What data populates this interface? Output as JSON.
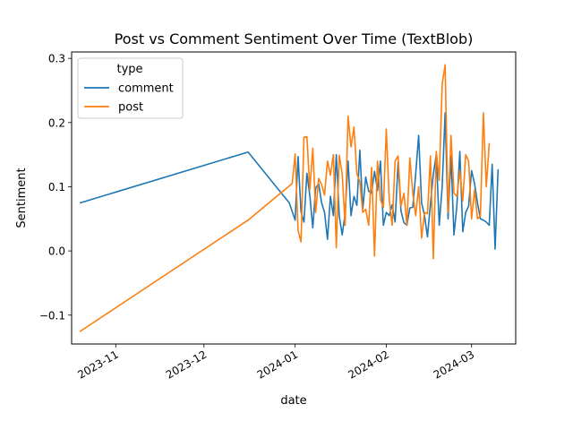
{
  "chart_data": {
    "type": "line",
    "title": "Post vs Comment Sentiment Over Time (TextBlob)",
    "xlabel": "date",
    "ylabel": "Sentiment",
    "xlim": [
      "2023-10-17",
      "2024-03-16"
    ],
    "ylim": [
      -0.145,
      0.31
    ],
    "grid": false,
    "legend": {
      "title": "type",
      "placement": "top-left"
    },
    "x_ticks": [
      {
        "date": "2023-11-01",
        "label": "2023-11"
      },
      {
        "date": "2023-12-01",
        "label": "2023-12"
      },
      {
        "date": "2024-01-01",
        "label": "2024-01"
      },
      {
        "date": "2024-02-01",
        "label": "2024-02"
      },
      {
        "date": "2024-03-01",
        "label": "2024-03"
      }
    ],
    "y_ticks": [
      {
        "value": -0.1,
        "label": "−0.1"
      },
      {
        "value": 0.0,
        "label": "0.0"
      },
      {
        "value": 0.1,
        "label": "0.1"
      },
      {
        "value": 0.2,
        "label": "0.2"
      },
      {
        "value": 0.3,
        "label": "0.3"
      }
    ],
    "series": [
      {
        "name": "comment",
        "color": "#1f77b4",
        "points": [
          [
            "2023-10-20",
            0.075
          ],
          [
            "2023-12-16",
            0.154
          ],
          [
            "2023-12-30",
            0.075
          ],
          [
            "2024-01-01",
            0.048
          ],
          [
            "2024-01-02",
            0.147
          ],
          [
            "2024-01-03",
            0.061
          ],
          [
            "2024-01-04",
            0.045
          ],
          [
            "2024-01-05",
            0.121
          ],
          [
            "2024-01-06",
            0.086
          ],
          [
            "2024-01-07",
            0.036
          ],
          [
            "2024-01-08",
            0.098
          ],
          [
            "2024-01-09",
            0.105
          ],
          [
            "2024-01-10",
            0.075
          ],
          [
            "2024-01-11",
            0.06
          ],
          [
            "2024-01-12",
            0.018
          ],
          [
            "2024-01-13",
            0.085
          ],
          [
            "2024-01-14",
            0.055
          ],
          [
            "2024-01-15",
            0.15
          ],
          [
            "2024-01-16",
            0.055
          ],
          [
            "2024-01-17",
            0.025
          ],
          [
            "2024-01-18",
            0.058
          ],
          [
            "2024-01-19",
            0.14
          ],
          [
            "2024-01-20",
            0.055
          ],
          [
            "2024-01-21",
            0.085
          ],
          [
            "2024-01-22",
            0.071
          ],
          [
            "2024-01-23",
            0.157
          ],
          [
            "2024-01-24",
            0.065
          ],
          [
            "2024-01-25",
            0.115
          ],
          [
            "2024-01-26",
            0.093
          ],
          [
            "2024-01-27",
            0.09
          ],
          [
            "2024-01-28",
            0.124
          ],
          [
            "2024-01-29",
            0.094
          ],
          [
            "2024-01-30",
            0.14
          ],
          [
            "2024-01-31",
            0.04
          ],
          [
            "2024-02-01",
            0.06
          ],
          [
            "2024-02-02",
            0.055
          ],
          [
            "2024-02-03",
            0.072
          ],
          [
            "2024-02-04",
            0.045
          ],
          [
            "2024-02-05",
            0.138
          ],
          [
            "2024-02-06",
            0.062
          ],
          [
            "2024-02-07",
            0.044
          ],
          [
            "2024-02-08",
            0.04
          ],
          [
            "2024-02-09",
            0.067
          ],
          [
            "2024-02-10",
            0.068
          ],
          [
            "2024-02-11",
            0.12
          ],
          [
            "2024-02-12",
            0.18
          ],
          [
            "2024-02-13",
            0.075
          ],
          [
            "2024-02-14",
            0.055
          ],
          [
            "2024-02-15",
            0.022
          ],
          [
            "2024-02-16",
            0.073
          ],
          [
            "2024-02-17",
            0.12
          ],
          [
            "2024-02-18",
            0.15
          ],
          [
            "2024-02-19",
            0.04
          ],
          [
            "2024-02-20",
            0.1
          ],
          [
            "2024-02-21",
            0.215
          ],
          [
            "2024-02-22",
            0.05
          ],
          [
            "2024-02-23",
            0.148
          ],
          [
            "2024-02-24",
            0.025
          ],
          [
            "2024-02-25",
            0.07
          ],
          [
            "2024-02-26",
            0.155
          ],
          [
            "2024-02-27",
            0.03
          ],
          [
            "2024-02-28",
            0.06
          ],
          [
            "2024-02-29",
            0.07
          ],
          [
            "2024-03-01",
            0.125
          ],
          [
            "2024-03-02",
            0.105
          ],
          [
            "2024-03-03",
            0.075
          ],
          [
            "2024-03-04",
            0.05
          ],
          [
            "2024-03-05",
            0.048
          ],
          [
            "2024-03-06",
            0.045
          ],
          [
            "2024-03-07",
            0.04
          ],
          [
            "2024-03-08",
            0.135
          ],
          [
            "2024-03-09",
            0.003
          ],
          [
            "2024-03-10",
            0.126
          ]
        ]
      },
      {
        "name": "post",
        "color": "#ff7f0e",
        "points": [
          [
            "2023-10-20",
            -0.125
          ],
          [
            "2023-12-16",
            0.048
          ],
          [
            "2023-12-31",
            0.105
          ],
          [
            "2024-01-01",
            0.151
          ],
          [
            "2024-01-02",
            0.032
          ],
          [
            "2024-01-03",
            0.014
          ],
          [
            "2024-01-04",
            0.177
          ],
          [
            "2024-01-05",
            0.178
          ],
          [
            "2024-01-06",
            0.095
          ],
          [
            "2024-01-07",
            0.16
          ],
          [
            "2024-01-08",
            0.06
          ],
          [
            "2024-01-09",
            0.113
          ],
          [
            "2024-01-10",
            0.103
          ],
          [
            "2024-01-11",
            0.087
          ],
          [
            "2024-01-12",
            0.14
          ],
          [
            "2024-01-13",
            0.118
          ],
          [
            "2024-01-14",
            0.15
          ],
          [
            "2024-01-15",
            0.005
          ],
          [
            "2024-01-16",
            0.149
          ],
          [
            "2024-01-17",
            0.12
          ],
          [
            "2024-01-18",
            0.04
          ],
          [
            "2024-01-19",
            0.21
          ],
          [
            "2024-01-20",
            0.162
          ],
          [
            "2024-01-21",
            0.193
          ],
          [
            "2024-01-22",
            0.12
          ],
          [
            "2024-01-23",
            0.108
          ],
          [
            "2024-01-24",
            0.06
          ],
          [
            "2024-01-25",
            0.065
          ],
          [
            "2024-01-26",
            0.04
          ],
          [
            "2024-01-27",
            0.13
          ],
          [
            "2024-01-28",
            -0.008
          ],
          [
            "2024-01-29",
            0.14
          ],
          [
            "2024-01-30",
            0.08
          ],
          [
            "2024-01-31",
            0.068
          ],
          [
            "2024-02-01",
            0.19
          ],
          [
            "2024-02-02",
            0.08
          ],
          [
            "2024-02-03",
            0.04
          ],
          [
            "2024-02-04",
            0.14
          ],
          [
            "2024-02-05",
            0.148
          ],
          [
            "2024-02-06",
            0.07
          ],
          [
            "2024-02-07",
            0.09
          ],
          [
            "2024-02-08",
            0.04
          ],
          [
            "2024-02-09",
            0.145
          ],
          [
            "2024-02-10",
            0.09
          ],
          [
            "2024-02-11",
            0.055
          ],
          [
            "2024-02-12",
            0.1
          ],
          [
            "2024-02-13",
            0.02
          ],
          [
            "2024-02-14",
            0.06
          ],
          [
            "2024-02-15",
            0.058
          ],
          [
            "2024-02-16",
            0.148
          ],
          [
            "2024-02-17",
            -0.012
          ],
          [
            "2024-02-18",
            0.155
          ],
          [
            "2024-02-19",
            0.11
          ],
          [
            "2024-02-20",
            0.26
          ],
          [
            "2024-02-21",
            0.29
          ],
          [
            "2024-02-22",
            0.06
          ],
          [
            "2024-02-23",
            0.18
          ],
          [
            "2024-02-24",
            0.09
          ],
          [
            "2024-02-25",
            0.085
          ],
          [
            "2024-02-26",
            0.125
          ],
          [
            "2024-02-27",
            0.078
          ],
          [
            "2024-02-28",
            0.15
          ],
          [
            "2024-02-29",
            0.14
          ],
          [
            "2024-03-01",
            0.05
          ],
          [
            "2024-03-02",
            0.095
          ],
          [
            "2024-03-03",
            0.05
          ],
          [
            "2024-03-04",
            0.055
          ],
          [
            "2024-03-05",
            0.215
          ],
          [
            "2024-03-06",
            0.1
          ],
          [
            "2024-03-07",
            0.167
          ]
        ]
      }
    ]
  }
}
